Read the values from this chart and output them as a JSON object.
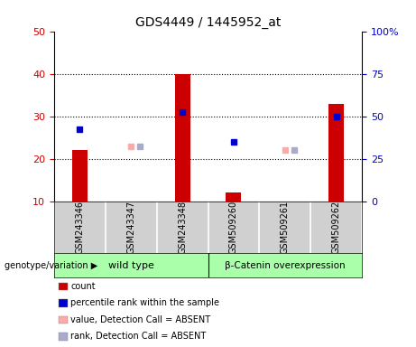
{
  "title": "GDS4449 / 1445952_at",
  "samples": [
    "GSM243346",
    "GSM243347",
    "GSM243348",
    "GSM509260",
    "GSM509261",
    "GSM509262"
  ],
  "red_bars": [
    22,
    10,
    40,
    12,
    10,
    33
  ],
  "blue_squares": {
    "0": 27,
    "2": 31,
    "3": 24,
    "5": 30
  },
  "light_pink_squares": {
    "1": 23,
    "4": 22
  },
  "light_blue_squares": {
    "1": 23,
    "4": 22
  },
  "ylim_left": [
    10,
    50
  ],
  "ylim_right": [
    0,
    100
  ],
  "yticks_left": [
    10,
    20,
    30,
    40,
    50
  ],
  "yticks_right": [
    0,
    25,
    50,
    75,
    100
  ],
  "ytick_labels_right": [
    "0",
    "25",
    "50",
    "75",
    "100%"
  ],
  "left_color": "#cc0000",
  "blue_color": "#0000cc",
  "light_pink_color": "#ffaaaa",
  "light_blue_color": "#aaaacc",
  "bar_width": 0.3,
  "wt_indices": [
    0,
    1,
    2
  ],
  "beta_indices": [
    3,
    4,
    5
  ],
  "wt_label": "wild type",
  "beta_label": "β-Catenin overexpression",
  "genotype_label": "genotype/variation",
  "group_bg": "#aaffaa",
  "sample_bg": "#d0d0d0",
  "legend_items": [
    {
      "color": "#cc0000",
      "label": "count"
    },
    {
      "color": "#0000cc",
      "label": "percentile rank within the sample"
    },
    {
      "color": "#ffaaaa",
      "label": "value, Detection Call = ABSENT"
    },
    {
      "color": "#aaaacc",
      "label": "rank, Detection Call = ABSENT"
    }
  ]
}
